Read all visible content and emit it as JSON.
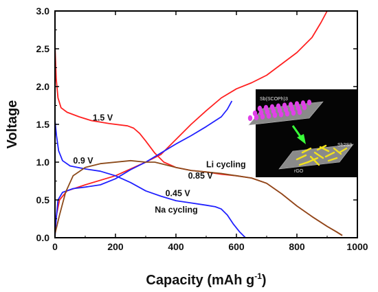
{
  "chart_data": {
    "type": "line",
    "xlabel": "Capacity (mAh g",
    "xlabel_sup": "-1",
    "xlabel_end": ")",
    "ylabel": "Voltage",
    "xlim": [
      0,
      1000
    ],
    "ylim": [
      0,
      3.0
    ],
    "xticks": [
      "0",
      "200",
      "400",
      "600",
      "800",
      "1000"
    ],
    "yticks": [
      "0.0",
      "0.5",
      "1.0",
      "1.5",
      "2.0",
      "2.5",
      "3.0"
    ],
    "grid": false,
    "series": [
      {
        "role": "li-discharge",
        "color": "#ff2020",
        "points": [
          [
            0,
            2.55
          ],
          [
            4,
            2.1
          ],
          [
            10,
            1.85
          ],
          [
            20,
            1.72
          ],
          [
            40,
            1.66
          ],
          [
            80,
            1.6
          ],
          [
            120,
            1.55
          ],
          [
            180,
            1.51
          ],
          [
            240,
            1.48
          ],
          [
            260,
            1.45
          ],
          [
            280,
            1.38
          ],
          [
            300,
            1.28
          ],
          [
            330,
            1.12
          ],
          [
            360,
            1.0
          ],
          [
            400,
            0.93
          ],
          [
            450,
            0.89
          ],
          [
            500,
            0.87
          ],
          [
            550,
            0.84
          ],
          [
            600,
            0.82
          ],
          [
            650,
            0.79
          ],
          [
            700,
            0.72
          ],
          [
            750,
            0.58
          ],
          [
            800,
            0.42
          ],
          [
            850,
            0.28
          ],
          [
            900,
            0.15
          ],
          [
            930,
            0.08
          ],
          [
            950,
            0.03
          ]
        ]
      },
      {
        "role": "li-charge",
        "color": "#ff2020",
        "points": [
          [
            0,
            0.04
          ],
          [
            5,
            0.3
          ],
          [
            15,
            0.5
          ],
          [
            40,
            0.62
          ],
          [
            100,
            0.7
          ],
          [
            200,
            0.82
          ],
          [
            300,
            1.0
          ],
          [
            350,
            1.1
          ],
          [
            400,
            1.3
          ],
          [
            450,
            1.5
          ],
          [
            500,
            1.68
          ],
          [
            550,
            1.85
          ],
          [
            600,
            1.97
          ],
          [
            650,
            2.05
          ],
          [
            700,
            2.15
          ],
          [
            750,
            2.3
          ],
          [
            800,
            2.45
          ],
          [
            850,
            2.65
          ],
          [
            880,
            2.85
          ],
          [
            900,
            3.0
          ]
        ]
      },
      {
        "role": "na-discharge",
        "color": "#2020ff",
        "points": [
          [
            0,
            1.55
          ],
          [
            5,
            1.35
          ],
          [
            12,
            1.15
          ],
          [
            25,
            1.02
          ],
          [
            50,
            0.95
          ],
          [
            100,
            0.91
          ],
          [
            150,
            0.88
          ],
          [
            200,
            0.82
          ],
          [
            250,
            0.73
          ],
          [
            300,
            0.62
          ],
          [
            350,
            0.55
          ],
          [
            400,
            0.49
          ],
          [
            450,
            0.46
          ],
          [
            500,
            0.43
          ],
          [
            530,
            0.41
          ],
          [
            550,
            0.38
          ],
          [
            570,
            0.3
          ],
          [
            590,
            0.18
          ],
          [
            610,
            0.08
          ],
          [
            630,
            0.0
          ]
        ]
      },
      {
        "role": "na-charge",
        "color": "#2020ff",
        "points": [
          [
            0,
            0.0
          ],
          [
            3,
            0.2
          ],
          [
            10,
            0.5
          ],
          [
            25,
            0.6
          ],
          [
            60,
            0.65
          ],
          [
            100,
            0.67
          ],
          [
            150,
            0.7
          ],
          [
            200,
            0.78
          ],
          [
            250,
            0.9
          ],
          [
            300,
            1.0
          ],
          [
            350,
            1.12
          ],
          [
            400,
            1.24
          ],
          [
            450,
            1.35
          ],
          [
            500,
            1.47
          ],
          [
            550,
            1.6
          ],
          [
            570,
            1.7
          ],
          [
            585,
            1.81
          ]
        ]
      },
      {
        "role": "brown-discharge",
        "color": "#8b4a1a",
        "points": [
          [
            0,
            0.05
          ],
          [
            15,
            0.3
          ],
          [
            35,
            0.6
          ],
          [
            60,
            0.82
          ],
          [
            100,
            0.93
          ],
          [
            150,
            0.98
          ],
          [
            250,
            1.02
          ],
          [
            300,
            1.0
          ],
          [
            330,
            1.0
          ],
          [
            360,
            0.97
          ],
          [
            400,
            0.93
          ],
          [
            450,
            0.89
          ],
          [
            500,
            0.87
          ],
          [
            550,
            0.85
          ],
          [
            600,
            0.82
          ],
          [
            650,
            0.79
          ],
          [
            700,
            0.72
          ],
          [
            750,
            0.58
          ],
          [
            800,
            0.42
          ],
          [
            850,
            0.28
          ],
          [
            900,
            0.15
          ],
          [
            930,
            0.08
          ],
          [
            950,
            0.03
          ]
        ]
      }
    ],
    "annotations": [
      {
        "text": "1.5 V",
        "x": 125,
        "y": 1.55
      },
      {
        "text": "0.9 V",
        "x": 60,
        "y": 0.98
      },
      {
        "text": "Li cycling",
        "x": 500,
        "y": 0.93
      },
      {
        "text": "0.85 V",
        "x": 440,
        "y": 0.78
      },
      {
        "text": "0.45 V",
        "x": 365,
        "y": 0.55
      },
      {
        "text": "Na cycling",
        "x": 330,
        "y": 0.33
      }
    ],
    "inset": {
      "label_top": "Sb(SCOPh)3",
      "label_right": "Sb2S3",
      "label_bottom": "rGO"
    }
  }
}
